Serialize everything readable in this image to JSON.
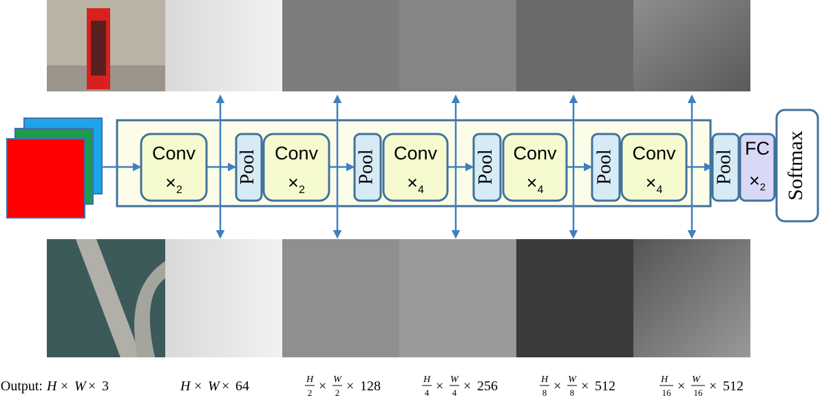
{
  "stages": [
    {
      "conv": "Conv",
      "times": "×",
      "factor": "2"
    },
    {
      "pool": "Pool",
      "conv": "Conv",
      "times": "×",
      "factor": "2"
    },
    {
      "pool": "Pool",
      "conv": "Conv",
      "times": "×",
      "factor": "4"
    },
    {
      "pool": "Pool",
      "conv": "Conv",
      "times": "×",
      "factor": "4"
    },
    {
      "pool": "Pool",
      "conv": "Conv",
      "times": "×",
      "factor": "4"
    }
  ],
  "head": {
    "pool": "Pool",
    "fc": "FC",
    "times": "×",
    "factor": "2",
    "softmax": "Softmax"
  },
  "output": {
    "label": "Output:",
    "times": "×",
    "dims": [
      {
        "h": "H",
        "w": "W",
        "c": "3"
      },
      {
        "h": "H",
        "w": "W",
        "c": "64"
      },
      {
        "h": "H",
        "w": "W",
        "div": "2",
        "c": "128"
      },
      {
        "h": "H",
        "w": "W",
        "div": "4",
        "c": "256"
      },
      {
        "h": "H",
        "w": "W",
        "div": "8",
        "c": "512"
      },
      {
        "h": "H",
        "w": "W",
        "div": "16",
        "c": "512"
      }
    ]
  }
}
